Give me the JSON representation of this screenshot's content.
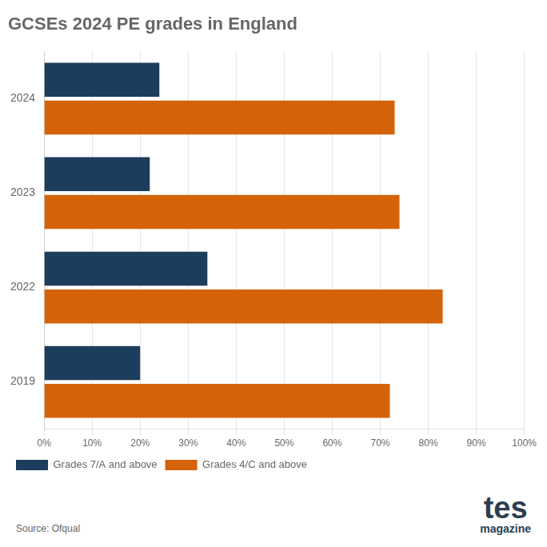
{
  "chart_data": {
    "type": "bar",
    "orientation": "horizontal",
    "title": "GCSEs 2024 PE grades in England",
    "categories": [
      "2024",
      "2023",
      "2022",
      "2019"
    ],
    "series": [
      {
        "name": "Grades 7/A and above",
        "color": "#1d3d5c",
        "values": [
          24,
          22,
          34,
          20
        ]
      },
      {
        "name": "Grades 4/C and above",
        "color": "#d4630a",
        "values": [
          73,
          74,
          83,
          72
        ]
      }
    ],
    "xlim": [
      0,
      100
    ],
    "xticks": [
      {
        "value": 0,
        "label": "0%"
      },
      {
        "value": 10,
        "label": "10%"
      },
      {
        "value": 20,
        "label": "20%"
      },
      {
        "value": 30,
        "label": "30%"
      },
      {
        "value": 40,
        "label": "40%"
      },
      {
        "value": 50,
        "label": "50%"
      },
      {
        "value": 60,
        "label": "60%"
      },
      {
        "value": 70,
        "label": "70%"
      },
      {
        "value": 80,
        "label": "80%"
      },
      {
        "value": 90,
        "label": "90%"
      },
      {
        "value": 100,
        "label": "100%"
      }
    ],
    "grid": true,
    "legend": "bottom",
    "annotations": [
      "Source: Ofqual",
      "tes",
      "magazine"
    ]
  }
}
